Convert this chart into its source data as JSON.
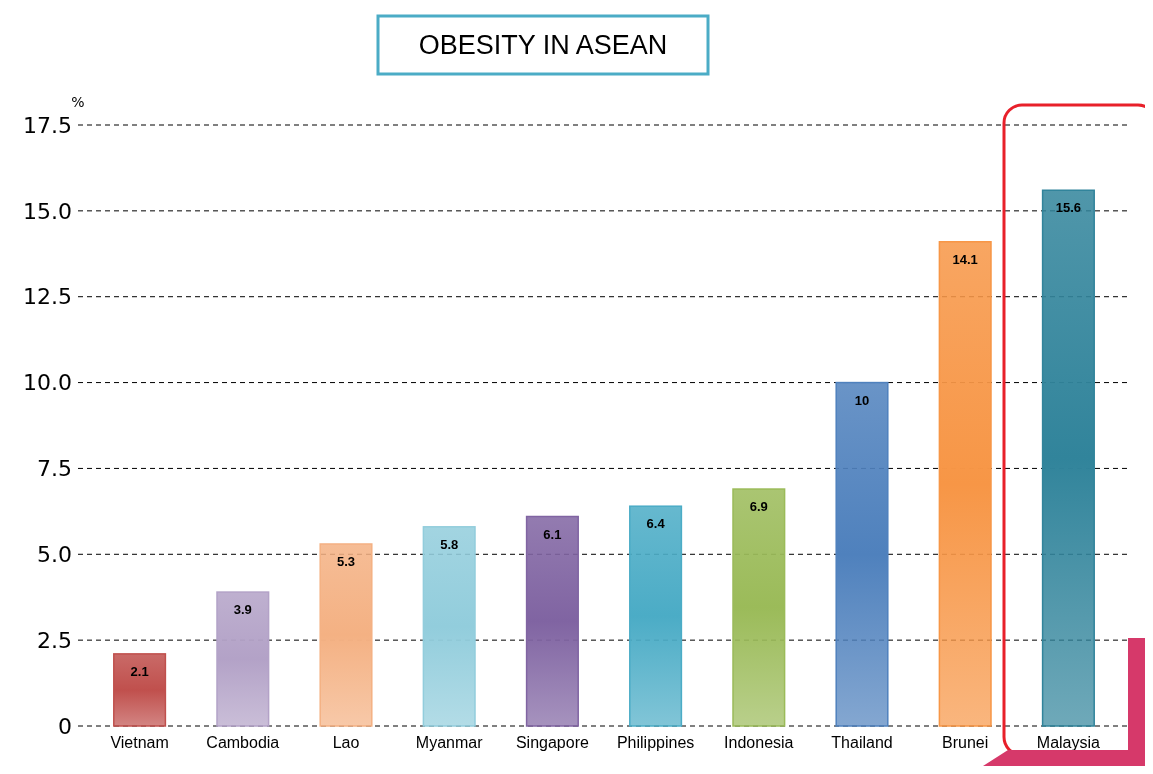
{
  "chart_data": {
    "type": "bar",
    "title": "OBESITY IN ASEAN",
    "ylabel": "%",
    "categories": [
      "Vietnam",
      "Cambodia",
      "Lao",
      "Myanmar",
      "Singapore",
      "Philippines",
      "Indonesia",
      "Thailand",
      "Brunei",
      "Malaysia"
    ],
    "values": [
      2.1,
      3.9,
      5.3,
      5.8,
      6.1,
      6.4,
      6.9,
      10,
      14.1,
      15.6
    ],
    "colors": [
      "#c0504d",
      "#b3a2c7",
      "#f4b183",
      "#92cddc",
      "#8064a2",
      "#4bacc6",
      "#9bbb59",
      "#4f81bd",
      "#f79646",
      "#31849b"
    ],
    "ylim": [
      0,
      17.5
    ],
    "yticks": [
      0,
      {
        "value": 2.5,
        "label": "2.5"
      },
      {
        "value": 5,
        "label": "5.0"
      },
      {
        "value": 7.5,
        "label": "7.5"
      },
      {
        "value": 10,
        "label": "10.0"
      },
      {
        "value": 12.5,
        "label": "12.5"
      },
      {
        "value": 15,
        "label": "15.0"
      },
      {
        "value": 17.5,
        "label": "17.5"
      }
    ],
    "grid": "y",
    "data_labels": true
  }
}
